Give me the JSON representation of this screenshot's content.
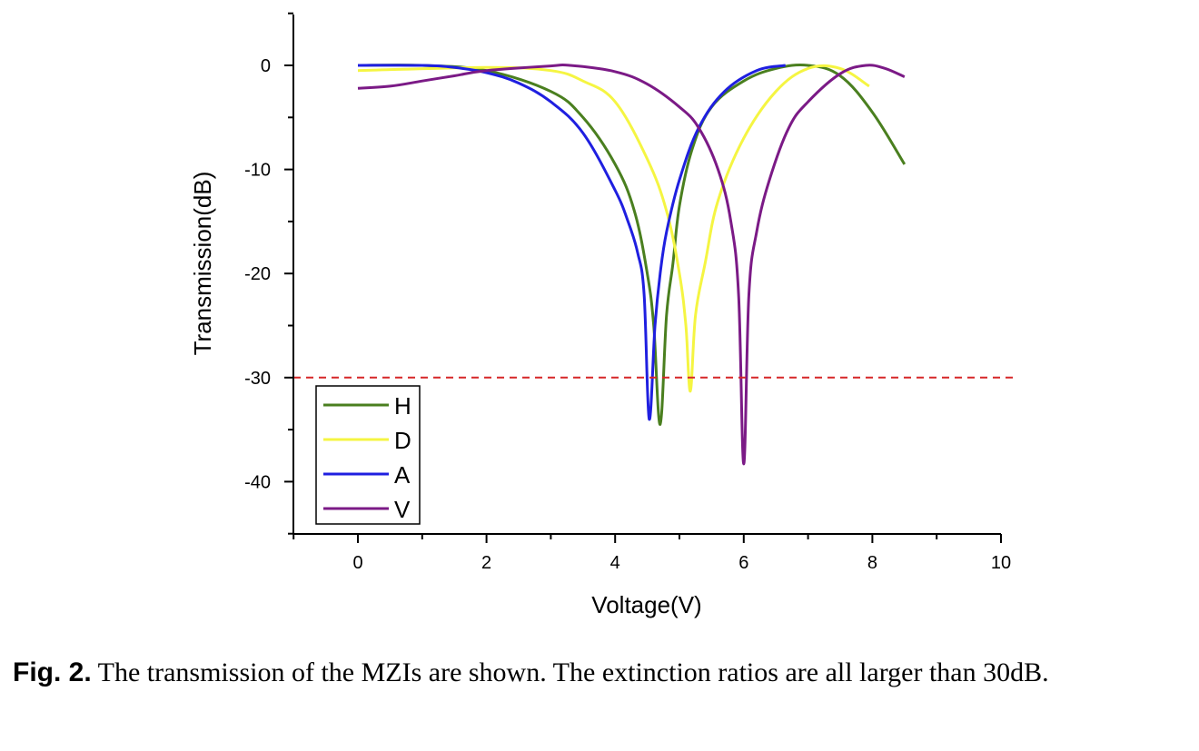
{
  "chart_data": {
    "type": "line",
    "xlabel": "Voltage(V)",
    "ylabel": "Transmission(dB)",
    "xlim": [
      -1,
      10
    ],
    "ylim": [
      -45,
      5
    ],
    "xticks": [
      0,
      2,
      4,
      6,
      8,
      10
    ],
    "yticks": [
      0,
      -10,
      -20,
      -30,
      -40
    ],
    "xtick_labels": [
      "0",
      "2",
      "4",
      "6",
      "8",
      "10"
    ],
    "ytick_labels": [
      "0",
      "-10",
      "-20",
      "-30",
      "-40"
    ],
    "grid": false,
    "legend_position": "bottom-left",
    "reference_line": {
      "y": -30,
      "style": "dashed",
      "color": "#d62728"
    },
    "series": [
      {
        "name": "H",
        "color": "#4a7f1f",
        "points": [
          [
            0,
            0
          ],
          [
            1,
            0
          ],
          [
            2,
            -0.5
          ],
          [
            3,
            -2.5
          ],
          [
            3.5,
            -5
          ],
          [
            4,
            -9.5
          ],
          [
            4.3,
            -14
          ],
          [
            4.5,
            -20
          ],
          [
            4.6,
            -25
          ],
          [
            4.7,
            -34.5
          ],
          [
            4.8,
            -24
          ],
          [
            4.9,
            -19
          ],
          [
            5.0,
            -13.5
          ],
          [
            5.2,
            -8
          ],
          [
            5.5,
            -4
          ],
          [
            6.0,
            -1.5
          ],
          [
            6.5,
            -0.3
          ],
          [
            7.0,
            0
          ],
          [
            7.5,
            -1
          ],
          [
            8.0,
            -4.5
          ],
          [
            8.5,
            -9.5
          ]
        ]
      },
      {
        "name": "D",
        "color": "#f5f542",
        "points": [
          [
            0,
            -0.5
          ],
          [
            2,
            -0.2
          ],
          [
            3,
            -0.5
          ],
          [
            3.5,
            -1.5
          ],
          [
            4,
            -3.5
          ],
          [
            4.5,
            -9
          ],
          [
            4.8,
            -14
          ],
          [
            5.0,
            -20
          ],
          [
            5.1,
            -25
          ],
          [
            5.17,
            -31.3
          ],
          [
            5.25,
            -24
          ],
          [
            5.4,
            -19
          ],
          [
            5.6,
            -13
          ],
          [
            6.0,
            -7
          ],
          [
            6.5,
            -2.5
          ],
          [
            7.0,
            -0.3
          ],
          [
            7.5,
            -0.3
          ],
          [
            7.95,
            -2
          ]
        ]
      },
      {
        "name": "A",
        "color": "#1f1fe0",
        "points": [
          [
            0,
            0
          ],
          [
            1,
            0
          ],
          [
            1.5,
            -0.2
          ],
          [
            2,
            -0.7
          ],
          [
            2.5,
            -1.7
          ],
          [
            3,
            -3.5
          ],
          [
            3.5,
            -6.5
          ],
          [
            4,
            -12
          ],
          [
            4.2,
            -15
          ],
          [
            4.35,
            -18
          ],
          [
            4.45,
            -22
          ],
          [
            4.53,
            -34
          ],
          [
            4.62,
            -25
          ],
          [
            4.7,
            -20
          ],
          [
            4.8,
            -16
          ],
          [
            5.0,
            -11
          ],
          [
            5.3,
            -6
          ],
          [
            5.7,
            -2.5
          ],
          [
            6.2,
            -0.5
          ],
          [
            6.65,
            0
          ]
        ]
      },
      {
        "name": "V",
        "color": "#7b1a86",
        "points": [
          [
            0,
            -2.2
          ],
          [
            0.5,
            -2
          ],
          [
            1,
            -1.5
          ],
          [
            1.5,
            -1
          ],
          [
            2,
            -0.5
          ],
          [
            3,
            -0.05
          ],
          [
            3.3,
            0
          ],
          [
            4,
            -0.6
          ],
          [
            4.5,
            -1.8
          ],
          [
            5.0,
            -4
          ],
          [
            5.3,
            -6
          ],
          [
            5.6,
            -10
          ],
          [
            5.8,
            -15
          ],
          [
            5.92,
            -22
          ],
          [
            6.0,
            -38.3
          ],
          [
            6.08,
            -22
          ],
          [
            6.2,
            -16
          ],
          [
            6.4,
            -11
          ],
          [
            6.7,
            -6
          ],
          [
            7.0,
            -3.5
          ],
          [
            7.5,
            -0.8
          ],
          [
            7.9,
            0
          ],
          [
            8.2,
            -0.3
          ],
          [
            8.5,
            -1.1
          ]
        ]
      }
    ]
  },
  "caption": {
    "fig_label": "Fig. 2.",
    "text": " The transmission of the MZIs are shown. The extinction ratios are all larger than 30dB."
  }
}
